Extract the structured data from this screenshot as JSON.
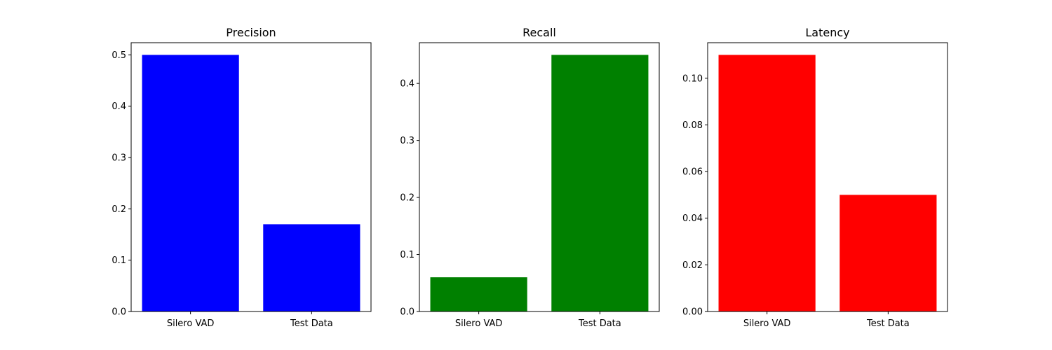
{
  "chart_data": [
    {
      "type": "bar",
      "title": "Precision",
      "categories": [
        "Silero VAD",
        "Test Data"
      ],
      "values": [
        0.5,
        0.17
      ],
      "ylim": [
        0,
        0.5
      ],
      "yticks": [
        0.0,
        0.1,
        0.2,
        0.3,
        0.4,
        0.5
      ],
      "ytick_labels": [
        "0.0",
        "0.1",
        "0.2",
        "0.3",
        "0.4",
        "0.5"
      ],
      "color": "#0000ff",
      "grid": false
    },
    {
      "type": "bar",
      "title": "Recall",
      "categories": [
        "Silero VAD",
        "Test Data"
      ],
      "values": [
        0.06,
        0.45
      ],
      "ylim": [
        0,
        0.45
      ],
      "yticks": [
        0.0,
        0.1,
        0.2,
        0.3,
        0.4
      ],
      "ytick_labels": [
        "0.0",
        "0.1",
        "0.2",
        "0.3",
        "0.4"
      ],
      "color": "#008000",
      "grid": false
    },
    {
      "type": "bar",
      "title": "Latency",
      "categories": [
        "Silero VAD",
        "Test Data"
      ],
      "values": [
        0.11,
        0.05
      ],
      "ylim": [
        0,
        0.11
      ],
      "yticks": [
        0.0,
        0.02,
        0.04,
        0.06,
        0.08,
        0.1
      ],
      "ytick_labels": [
        "0.00",
        "0.02",
        "0.04",
        "0.06",
        "0.08",
        "0.10"
      ],
      "color": "#ff0000",
      "grid": false
    }
  ]
}
